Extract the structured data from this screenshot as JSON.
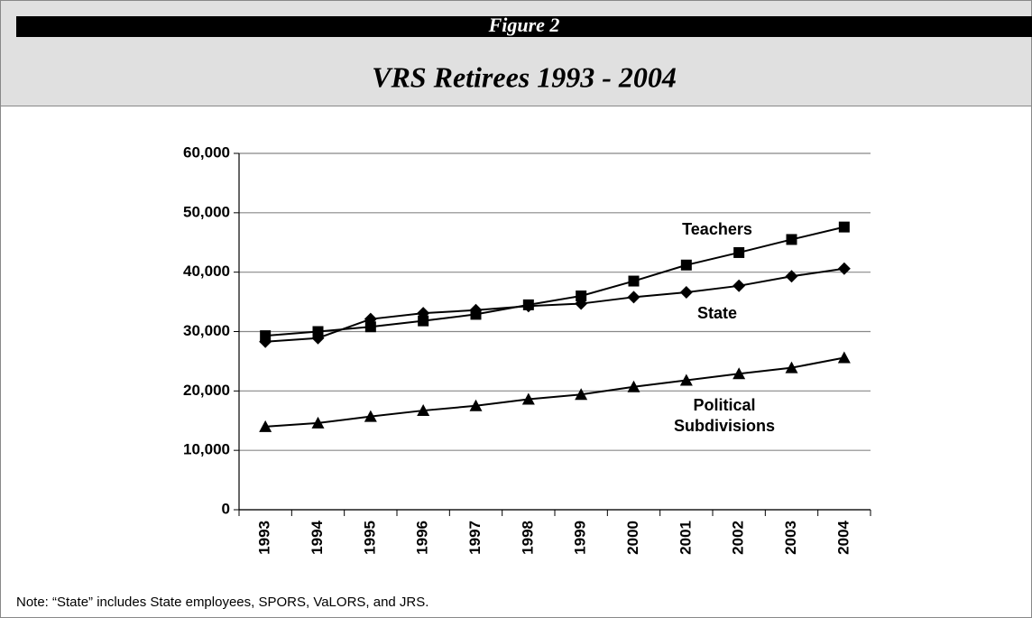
{
  "chart_data": {
    "type": "line",
    "figure_label": "Figure 2",
    "title": "VRS Retirees 1993 - 2004",
    "note": "Note:  “State” includes State employees, SPORS, VaLORS, and JRS.",
    "categories": [
      "1993",
      "1994",
      "1995",
      "1996",
      "1997",
      "1998",
      "1999",
      "2000",
      "2001",
      "2002",
      "2003",
      "2004"
    ],
    "series": [
      {
        "name": "Teachers",
        "color": "#000000",
        "marker": "square",
        "values": [
          29300,
          30000,
          30800,
          31800,
          32900,
          34500,
          36000,
          38500,
          41200,
          43300,
          45500,
          47600
        ]
      },
      {
        "name": "State",
        "color": "#000000",
        "marker": "diamond",
        "values": [
          28300,
          28900,
          32100,
          33100,
          33600,
          34300,
          34700,
          35800,
          36600,
          37700,
          39300,
          40600
        ]
      },
      {
        "name": "Political Subdivisions",
        "color": "#000000",
        "marker": "triangle",
        "values": [
          14000,
          14600,
          15700,
          16700,
          17500,
          18600,
          19400,
          20700,
          21800,
          22900,
          23900,
          25600
        ]
      }
    ],
    "ylim": [
      0,
      60000
    ],
    "yticks": [
      0,
      {
        "value": 10000,
        "label": "10,000"
      },
      {
        "value": 20000,
        "label": "20,000"
      },
      {
        "value": 30000,
        "label": "30,000"
      },
      {
        "value": 40000,
        "label": "40,000"
      },
      {
        "value": 50000,
        "label": "50,000"
      },
      {
        "value": 60000,
        "label": "60,000"
      }
    ],
    "grid": true
  }
}
